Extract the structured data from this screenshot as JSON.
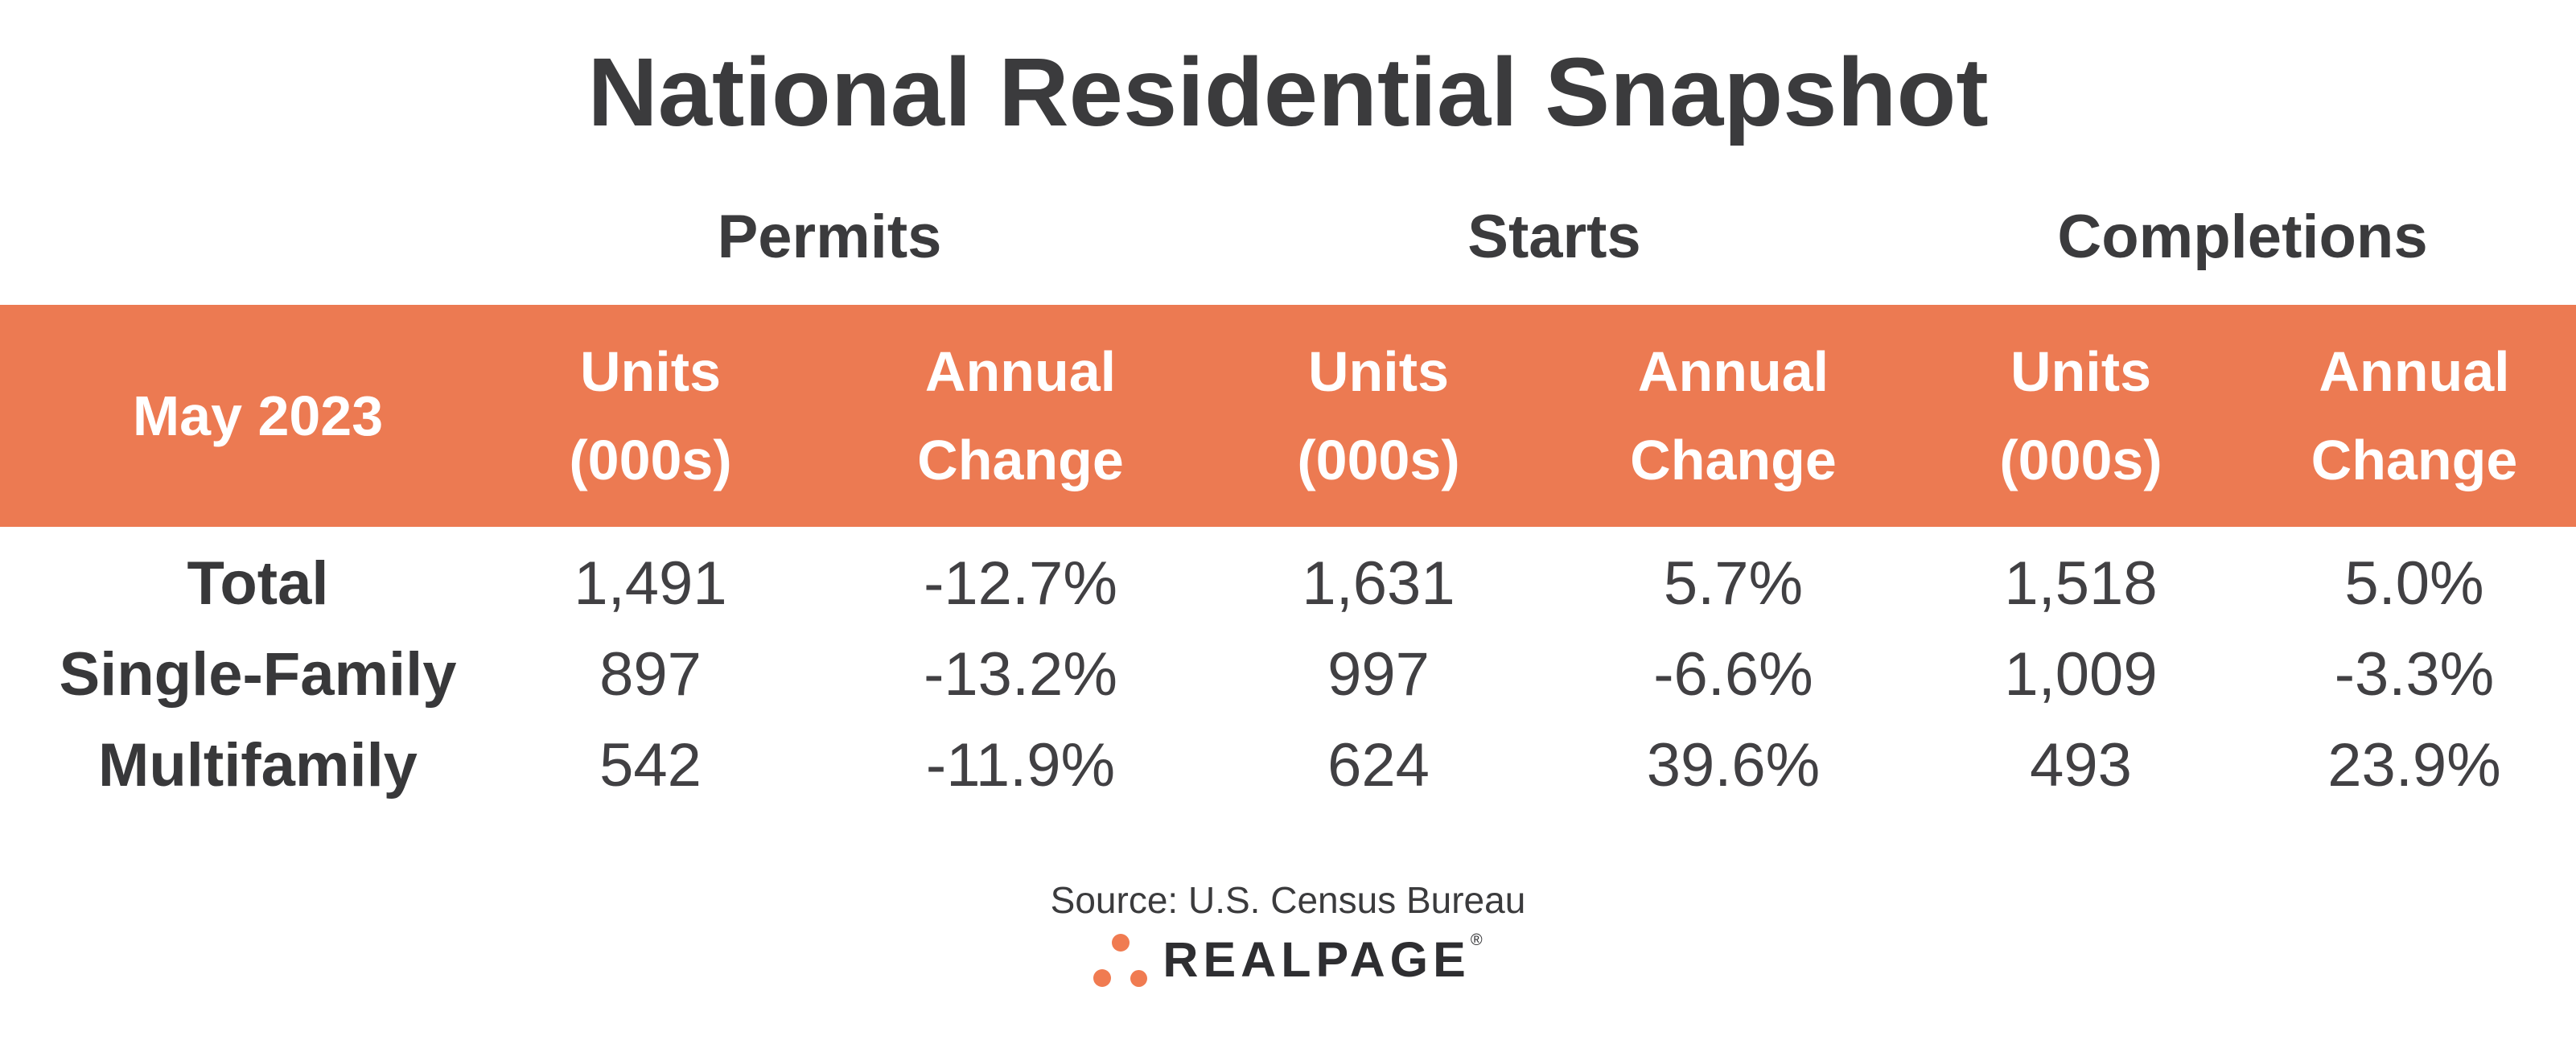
{
  "title": "National Residential Snapshot",
  "groups": [
    {
      "label": "Permits"
    },
    {
      "label": "Starts"
    },
    {
      "label": "Completions"
    }
  ],
  "header": {
    "period": "May 2023",
    "columns": [
      {
        "line1": "Units",
        "line2": "(000s)"
      },
      {
        "line1": "Annual",
        "line2": "Change"
      },
      {
        "line1": "Units",
        "line2": "(000s)"
      },
      {
        "line1": "Annual",
        "line2": "Change"
      },
      {
        "line1": "Units",
        "line2": "(000s)"
      },
      {
        "line1": "Annual",
        "line2": "Change"
      }
    ]
  },
  "table": {
    "rows": [
      {
        "label": "Total",
        "values": [
          "1,491",
          "-12.7%",
          "1,631",
          "5.7%",
          "1,518",
          "5.0%"
        ]
      },
      {
        "label": "Single-Family",
        "values": [
          "897",
          "-13.2%",
          "997",
          "-6.6%",
          "1,009",
          "-3.3%"
        ]
      },
      {
        "label": "Multifamily",
        "values": [
          "542",
          "-11.9%",
          "624",
          "39.6%",
          "493",
          "23.9%"
        ]
      }
    ]
  },
  "footer": {
    "source": "Source: U.S. Census Bureau",
    "brand": "REALPAGE",
    "registered": "®"
  },
  "colors": {
    "accent_orange": "#EC7A52",
    "logo_dot_orange": "#F07B51",
    "text_dark": "#3B3B3D",
    "header_text": "#FFFFFF"
  },
  "chart_data": {
    "type": "table",
    "title": "National Residential Snapshot",
    "period": "May 2023",
    "column_groups": [
      "Permits",
      "Starts",
      "Completions"
    ],
    "columns": [
      "Permits Units (000s)",
      "Permits Annual Change",
      "Starts Units (000s)",
      "Starts Annual Change",
      "Completions Units (000s)",
      "Completions Annual Change"
    ],
    "rows": [
      {
        "category": "Total",
        "values": [
          1491,
          -12.7,
          1631,
          5.7,
          1518,
          5.0
        ]
      },
      {
        "category": "Single-Family",
        "values": [
          897,
          -13.2,
          997,
          -6.6,
          1009,
          -3.3
        ]
      },
      {
        "category": "Multifamily",
        "values": [
          542,
          -11.9,
          624,
          39.6,
          493,
          23.9
        ]
      }
    ],
    "source": "Source: U.S. Census Bureau"
  }
}
